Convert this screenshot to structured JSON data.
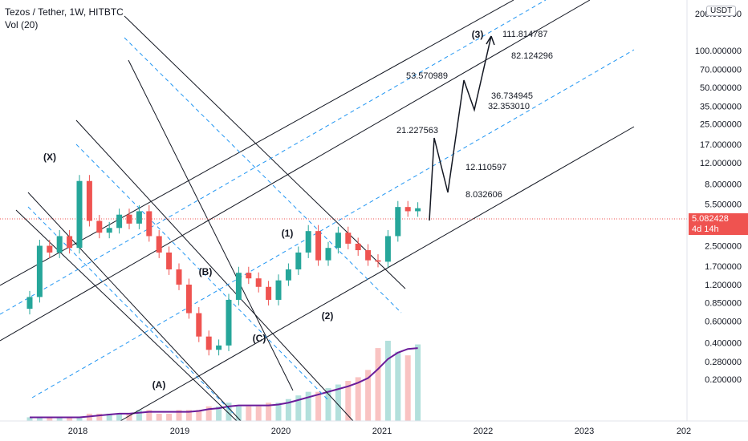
{
  "header": {
    "title": "Tezos / Tether, 1W, HITBTC",
    "indicator": "Vol (20)"
  },
  "currency_label": "USDT",
  "last_price": "5.082428",
  "countdown": "4d 14h",
  "colors": {
    "up": "#26a69a",
    "down": "#ef5350",
    "channel": "#131722",
    "dashed": "#2196f3",
    "vol_ma": "#6a1b9a"
  },
  "chart_data": {
    "type": "candlestick",
    "title": "Tezos / Tether, 1W, HITBTC",
    "y_scale": "log",
    "y_ticks": [
      "200.000000",
      "100.000000",
      "70.000000",
      "50.000000",
      "35.000000",
      "25.000000",
      "17.000000",
      "12.000000",
      "8.000000",
      "5.500000",
      "3.500000",
      "2.500000",
      "1.700000",
      "1.200000",
      "0.850000",
      "0.600000",
      "0.400000",
      "0.280000",
      "0.200000"
    ],
    "x_ticks": [
      "2018",
      "2019",
      "2020",
      "2021",
      "2022",
      "2023",
      "202"
    ],
    "wave_labels": [
      "(X)",
      "(A)",
      "(B)",
      "(C)",
      "(1)",
      "(2)",
      "(3)"
    ],
    "targets": [
      "111.814787",
      "82.124296",
      "53.570989",
      "36.734945",
      "32.353010",
      "21.227563",
      "12.110597",
      "8.032606"
    ],
    "series": [
      {
        "name": "Close",
        "values": [
          0.95,
          2.5,
          2.2,
          3.0,
          2.4,
          8.5,
          4.0,
          3.2,
          3.5,
          4.5,
          3.8,
          4.8,
          3.0,
          2.2,
          1.6,
          1.2,
          0.7,
          0.45,
          0.35,
          0.38,
          0.9,
          1.5,
          1.35,
          1.15,
          0.9,
          1.3,
          1.6,
          2.2,
          3.3,
          1.9,
          2.4,
          3.2,
          2.6,
          2.3,
          1.9,
          1.85,
          3.0,
          5.2,
          4.8,
          5.08
        ]
      },
      {
        "name": "Vol (20)",
        "values": [
          1,
          1,
          1,
          1,
          1,
          1,
          2,
          2,
          2,
          2,
          2,
          3,
          3,
          2,
          2,
          3,
          3,
          3,
          4,
          4,
          5,
          4,
          4,
          4,
          5,
          5,
          6,
          7,
          8,
          8,
          9,
          10,
          11,
          12,
          14,
          20,
          22,
          19,
          18,
          21
        ]
      }
    ]
  }
}
